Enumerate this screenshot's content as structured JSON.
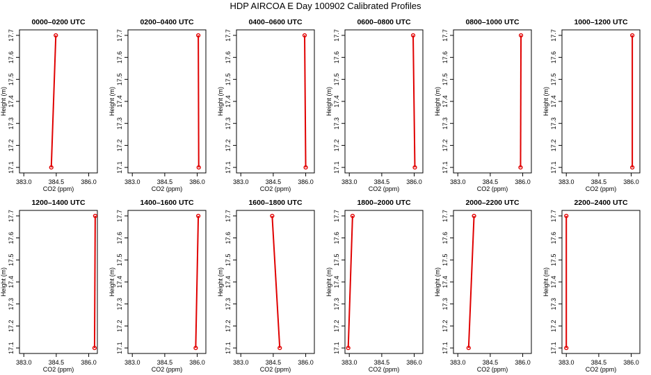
{
  "title": "HDP AIRCOA E  Day 100902  Calibrated Profiles",
  "colors": {
    "profile_line": "#e00000",
    "points": "#e00000",
    "axes": "#000000",
    "background": "#ffffff"
  },
  "chart_data": [
    {
      "type": "line",
      "title": "0000–0200 UTC",
      "xlabel": "CO2 (ppm)",
      "ylabel": "Height (m)",
      "xlim": [
        382.8,
        386.4
      ],
      "ylim": [
        17.075,
        17.725
      ],
      "xticks": [
        "383.0",
        "384.5",
        "386.0"
      ],
      "yticks": [
        "17.1",
        "17.2",
        "17.3",
        "17.4",
        "17.5",
        "17.6",
        "17.7"
      ],
      "series": [
        {
          "x": [
            384.27,
            384.48
          ],
          "y": [
            17.1,
            17.7
          ]
        }
      ]
    },
    {
      "type": "line",
      "title": "0200–0400 UTC",
      "xlabel": "CO2 (ppm)",
      "ylabel": "Height (m)",
      "xlim": [
        382.8,
        386.4
      ],
      "ylim": [
        17.075,
        17.725
      ],
      "xticks": [
        "383.0",
        "384.5",
        "386.0"
      ],
      "yticks": [
        "17.1",
        "17.2",
        "17.3",
        "17.4",
        "17.5",
        "17.6",
        "17.7"
      ],
      "series": [
        {
          "x": [
            386.07,
            386.05
          ],
          "y": [
            17.1,
            17.7
          ]
        }
      ]
    },
    {
      "type": "line",
      "title": "0400–0600 UTC",
      "xlabel": "CO2 (ppm)",
      "ylabel": "Height (m)",
      "xlim": [
        382.8,
        386.4
      ],
      "ylim": [
        17.075,
        17.725
      ],
      "xticks": [
        "383.0",
        "384.5",
        "386.0"
      ],
      "yticks": [
        "17.1",
        "17.2",
        "17.3",
        "17.4",
        "17.5",
        "17.6",
        "17.7"
      ],
      "series": [
        {
          "x": [
            386.0,
            385.95
          ],
          "y": [
            17.1,
            17.7
          ]
        }
      ]
    },
    {
      "type": "line",
      "title": "0600–0800 UTC",
      "xlabel": "CO2 (ppm)",
      "ylabel": "Height (m)",
      "xlim": [
        382.8,
        386.4
      ],
      "ylim": [
        17.075,
        17.725
      ],
      "xticks": [
        "383.0",
        "384.5",
        "386.0"
      ],
      "yticks": [
        "17.1",
        "17.2",
        "17.3",
        "17.4",
        "17.5",
        "17.6",
        "17.7"
      ],
      "series": [
        {
          "x": [
            386.03,
            385.95
          ],
          "y": [
            17.1,
            17.7
          ]
        }
      ]
    },
    {
      "type": "line",
      "title": "0800–1000 UTC",
      "xlabel": "CO2 (ppm)",
      "ylabel": "Height (m)",
      "xlim": [
        382.8,
        386.4
      ],
      "ylim": [
        17.075,
        17.725
      ],
      "xticks": [
        "383.0",
        "384.5",
        "386.0"
      ],
      "yticks": [
        "17.1",
        "17.2",
        "17.3",
        "17.4",
        "17.5",
        "17.6",
        "17.7"
      ],
      "series": [
        {
          "x": [
            385.9,
            385.92
          ],
          "y": [
            17.1,
            17.7
          ]
        }
      ]
    },
    {
      "type": "line",
      "title": "1000–1200 UTC",
      "xlabel": "CO2 (ppm)",
      "ylabel": "Height (m)",
      "xlim": [
        382.8,
        386.4
      ],
      "ylim": [
        17.075,
        17.725
      ],
      "xticks": [
        "383.0",
        "384.5",
        "386.0"
      ],
      "yticks": [
        "17.1",
        "17.2",
        "17.3",
        "17.4",
        "17.5",
        "17.6",
        "17.7"
      ],
      "series": [
        {
          "x": [
            386.05,
            386.05
          ],
          "y": [
            17.1,
            17.7
          ]
        }
      ]
    },
    {
      "type": "line",
      "title": "1200–1400 UTC",
      "xlabel": "CO2 (ppm)",
      "ylabel": "Height (m)",
      "xlim": [
        382.8,
        386.4
      ],
      "ylim": [
        17.075,
        17.725
      ],
      "xticks": [
        "383.0",
        "384.5",
        "386.0"
      ],
      "yticks": [
        "17.1",
        "17.2",
        "17.3",
        "17.4",
        "17.5",
        "17.6",
        "17.7"
      ],
      "series": [
        {
          "x": [
            386.27,
            386.3
          ],
          "y": [
            17.1,
            17.7
          ]
        }
      ]
    },
    {
      "type": "line",
      "title": "1400–1600 UTC",
      "xlabel": "CO2 (ppm)",
      "ylabel": "Height (m)",
      "xlim": [
        382.8,
        386.4
      ],
      "ylim": [
        17.075,
        17.725
      ],
      "xticks": [
        "383.0",
        "384.5",
        "386.0"
      ],
      "yticks": [
        "17.1",
        "17.2",
        "17.3",
        "17.4",
        "17.5",
        "17.6",
        "17.7"
      ],
      "series": [
        {
          "x": [
            385.93,
            386.05
          ],
          "y": [
            17.1,
            17.7
          ]
        }
      ]
    },
    {
      "type": "line",
      "title": "1600–1800 UTC",
      "xlabel": "CO2 (ppm)",
      "ylabel": "Height (m)",
      "xlim": [
        382.8,
        386.4
      ],
      "ylim": [
        17.075,
        17.725
      ],
      "xticks": [
        "383.0",
        "384.5",
        "386.0"
      ],
      "yticks": [
        "17.1",
        "17.2",
        "17.3",
        "17.4",
        "17.5",
        "17.6",
        "17.7"
      ],
      "series": [
        {
          "x": [
            384.8,
            384.45
          ],
          "y": [
            17.1,
            17.7
          ]
        }
      ]
    },
    {
      "type": "line",
      "title": "1800–2000 UTC",
      "xlabel": "CO2 (ppm)",
      "ylabel": "Height (m)",
      "xlim": [
        382.8,
        386.4
      ],
      "ylim": [
        17.075,
        17.725
      ],
      "xticks": [
        "383.0",
        "384.5",
        "386.0"
      ],
      "yticks": [
        "17.1",
        "17.2",
        "17.3",
        "17.4",
        "17.5",
        "17.6",
        "17.7"
      ],
      "series": [
        {
          "x": [
            382.95,
            383.15
          ],
          "y": [
            17.1,
            17.7
          ]
        }
      ]
    },
    {
      "type": "line",
      "title": "2000–2200 UTC",
      "xlabel": "CO2 (ppm)",
      "ylabel": "Height (m)",
      "xlim": [
        382.8,
        386.4
      ],
      "ylim": [
        17.075,
        17.725
      ],
      "xticks": [
        "383.0",
        "384.5",
        "386.0"
      ],
      "yticks": [
        "17.1",
        "17.2",
        "17.3",
        "17.4",
        "17.5",
        "17.6",
        "17.7"
      ],
      "series": [
        {
          "x": [
            383.5,
            383.75
          ],
          "y": [
            17.1,
            17.7
          ]
        }
      ]
    },
    {
      "type": "line",
      "title": "2200–2400 UTC",
      "xlabel": "CO2 (ppm)",
      "ylabel": "Height (m)",
      "xlim": [
        382.8,
        386.4
      ],
      "ylim": [
        17.075,
        17.725
      ],
      "xticks": [
        "383.0",
        "384.5",
        "386.0"
      ],
      "yticks": [
        "17.1",
        "17.2",
        "17.3",
        "17.4",
        "17.5",
        "17.6",
        "17.7"
      ],
      "series": [
        {
          "x": [
            383.0,
            383.0
          ],
          "y": [
            17.1,
            17.7
          ]
        }
      ]
    }
  ]
}
